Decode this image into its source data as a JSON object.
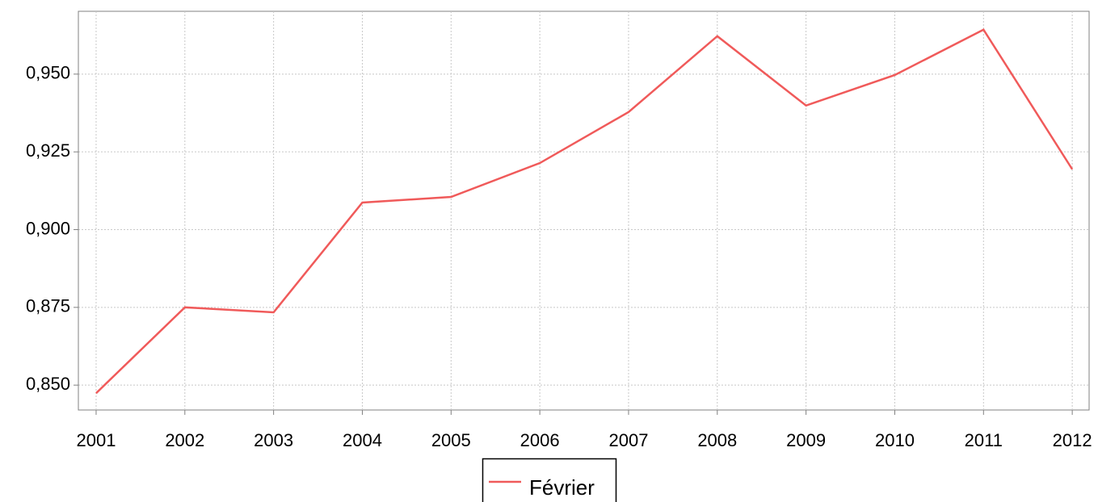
{
  "chart_data": {
    "type": "line",
    "x": [
      2001,
      2002,
      2003,
      2004,
      2005,
      2006,
      2007,
      2008,
      2009,
      2010,
      2011,
      2012
    ],
    "series": [
      {
        "name": "Février",
        "color": "#f05a5a",
        "values": [
          0.8474,
          0.875,
          0.8734,
          0.9087,
          0.9105,
          0.9214,
          0.9378,
          0.9622,
          0.9399,
          0.9497,
          0.9643,
          0.9194
        ]
      }
    ],
    "xlim": [
      2000.8,
      2012.19
    ],
    "xticks": [
      2001,
      2002,
      2003,
      2004,
      2005,
      2006,
      2007,
      2008,
      2009,
      2010,
      2011,
      2012
    ],
    "ylim": [
      0.842,
      0.9702
    ],
    "yticks": [
      {
        "value": 0.85,
        "label": "0,850"
      },
      {
        "value": 0.875,
        "label": "0,875"
      },
      {
        "value": 0.9,
        "label": "0,900"
      },
      {
        "value": 0.925,
        "label": "0,925"
      },
      {
        "value": 0.95,
        "label": "0,950"
      }
    ],
    "grid": true,
    "legend": "bottom"
  }
}
